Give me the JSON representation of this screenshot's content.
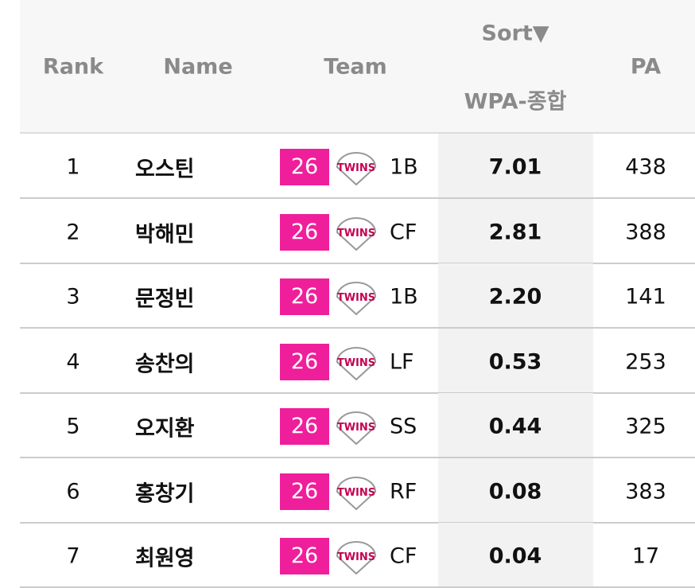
{
  "table": {
    "header": {
      "rank": "Rank",
      "name": "Name",
      "team": "Team",
      "sort": "Sort▼",
      "wpa": "WPA-종합",
      "pa": "PA"
    },
    "rows": [
      {
        "rank": "1",
        "name": "오스틴",
        "badge": "26",
        "logo": "TWINS",
        "position": "1B",
        "wpa": "7.01",
        "pa": "438"
      },
      {
        "rank": "2",
        "name": "박해민",
        "badge": "26",
        "logo": "TWINS",
        "position": "CF",
        "wpa": "2.81",
        "pa": "388"
      },
      {
        "rank": "3",
        "name": "문정빈",
        "badge": "26",
        "logo": "TWINS",
        "position": "1B",
        "wpa": "2.20",
        "pa": "141"
      },
      {
        "rank": "4",
        "name": "송찬의",
        "badge": "26",
        "logo": "TWINS",
        "position": "LF",
        "wpa": "0.53",
        "pa": "253"
      },
      {
        "rank": "5",
        "name": "오지환",
        "badge": "26",
        "logo": "TWINS",
        "position": "SS",
        "wpa": "0.44",
        "pa": "325"
      },
      {
        "rank": "6",
        "name": "홍창기",
        "badge": "26",
        "logo": "TWINS",
        "position": "RF",
        "wpa": "0.08",
        "pa": "383"
      },
      {
        "rank": "7",
        "name": "최원영",
        "badge": "26",
        "logo": "TWINS",
        "position": "CF",
        "wpa": "0.04",
        "pa": "17"
      }
    ]
  }
}
